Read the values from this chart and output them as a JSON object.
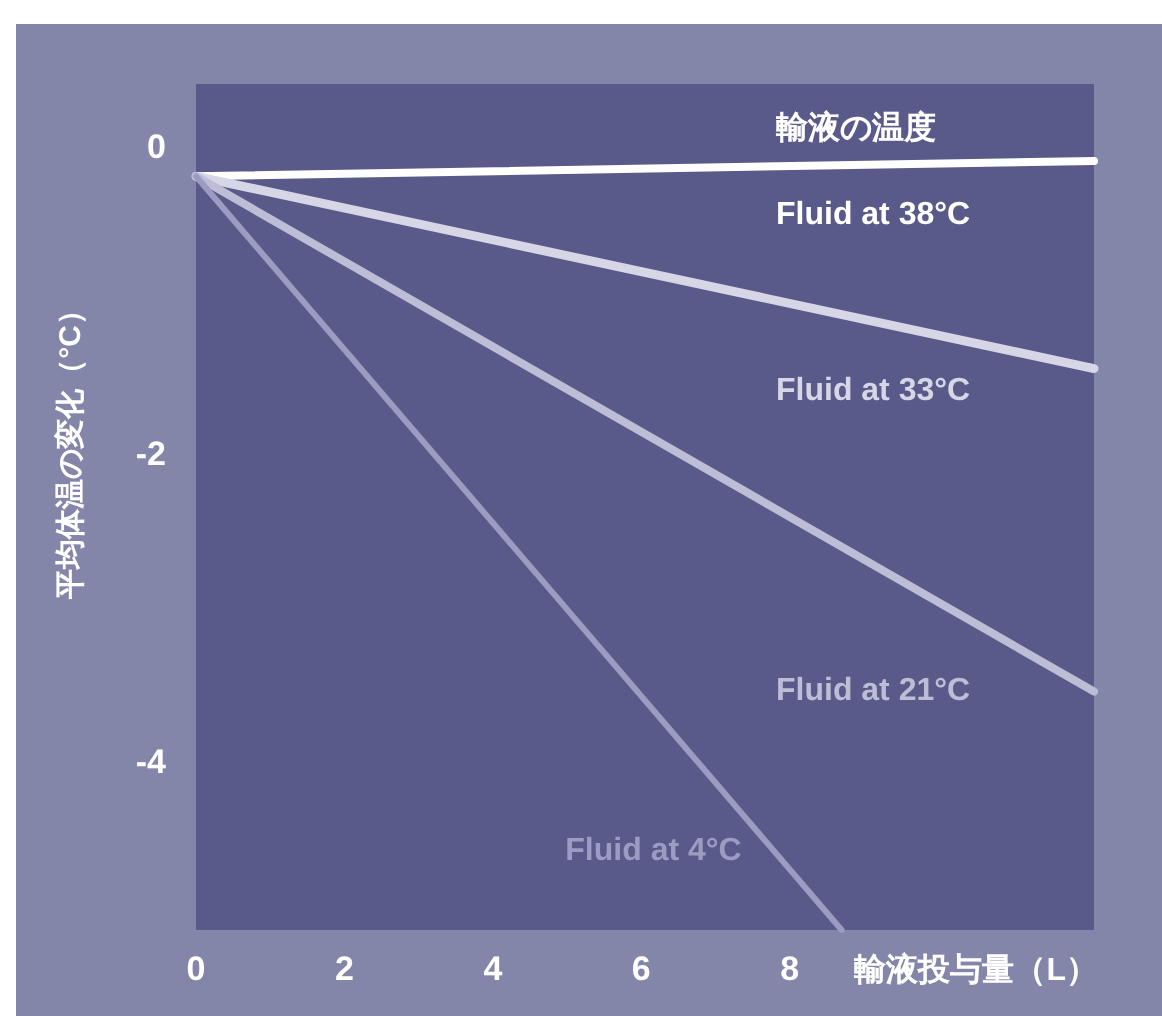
{
  "chart_data": {
    "type": "line",
    "legend_title": "輸液の温度",
    "xlabel": "輸液投与量（L）",
    "ylabel": "平均体温の変化（°C）",
    "xlim": [
      0,
      12.1
    ],
    "ylim": [
      -5.1,
      0.4
    ],
    "xticks": [
      0,
      2,
      4,
      6,
      8
    ],
    "yticks": [
      0,
      -2,
      -4
    ],
    "grid": false,
    "legend": "right",
    "marker": "none",
    "line_style": "solid",
    "series": [
      {
        "name": "Fluid at 38°C",
        "color": "#ffffff",
        "x": [
          0,
          12.1
        ],
        "values": [
          -0.2,
          -0.1
        ]
      },
      {
        "name": "Fluid at 33°C",
        "color": "#d6d6e6",
        "x": [
          0,
          12.1
        ],
        "values": [
          -0.2,
          -1.45
        ]
      },
      {
        "name": "Fluid at 21°C",
        "color": "#bdbdd6",
        "x": [
          0,
          12.1
        ],
        "values": [
          -0.2,
          -3.55
        ]
      },
      {
        "name": "Fluid at 4°C",
        "color": "#9c9cc2",
        "x": [
          0,
          8.7
        ],
        "values": [
          -0.2,
          -5.1
        ]
      }
    ]
  }
}
